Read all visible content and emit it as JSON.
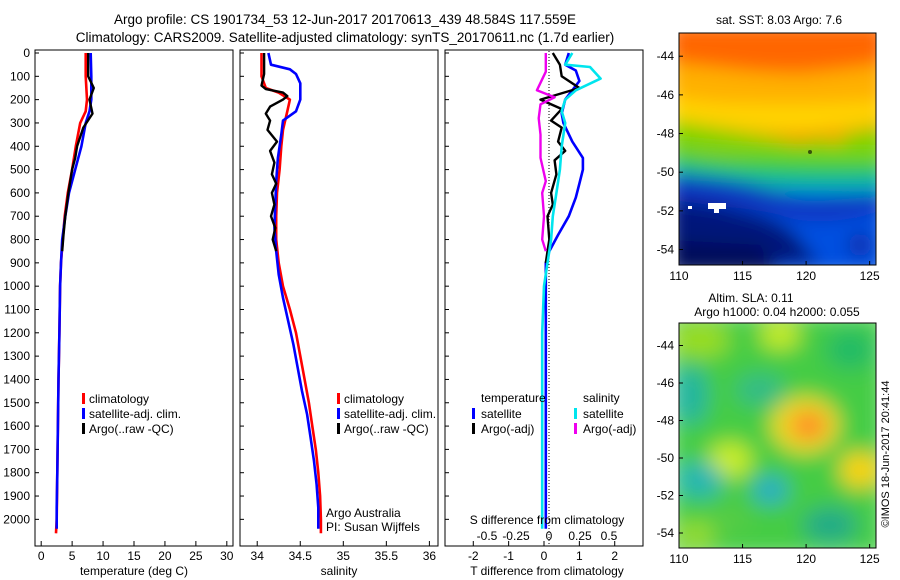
{
  "header": {
    "line1": "Argo profile: CS 1901734_53 12-Jun-2017 20170613_439 48.584S 117.559E",
    "line2": "Climatology: CARS2009. Satellite-adjusted climatology: synTS_20170611.nc (1.7d earlier)"
  },
  "colors": {
    "climatology": "#ff0000",
    "satellite_clim": "#0000ff",
    "argo": "#000000",
    "temp_satellite": "#0000ff",
    "temp_argo": "#000000",
    "sal_satellite": "#00e5ee",
    "sal_argo": "#ee00ee"
  },
  "chart_data": [
    {
      "type": "line",
      "xlabel": "temperature (deg C)",
      "xlim": [
        -1,
        31
      ],
      "xticks": [
        0,
        5,
        10,
        15,
        20,
        25,
        30
      ],
      "ylim": [
        0,
        2080
      ],
      "yticks": [
        0,
        100,
        200,
        300,
        400,
        500,
        600,
        700,
        800,
        900,
        1000,
        1100,
        1200,
        1300,
        1400,
        1500,
        1600,
        1700,
        1800,
        1900,
        2000
      ],
      "legend": [
        "climatology",
        "satellite-adj. clim.",
        "Argo(..raw -QC)"
      ],
      "series": [
        {
          "name": "climatology",
          "color": "climatology",
          "points": [
            [
              7.2,
              0
            ],
            [
              7.2,
              100
            ],
            [
              7.4,
              200
            ],
            [
              7.2,
              250
            ],
            [
              6.3,
              300
            ],
            [
              5.6,
              400
            ],
            [
              5.0,
              500
            ],
            [
              4.3,
              600
            ],
            [
              3.8,
              700
            ],
            [
              3.5,
              800
            ],
            [
              3.2,
              900
            ],
            [
              3.05,
              1000
            ],
            [
              2.95,
              1200
            ],
            [
              2.8,
              1400
            ],
            [
              2.7,
              1600
            ],
            [
              2.6,
              1800
            ],
            [
              2.5,
              2000
            ],
            [
              2.4,
              2060
            ]
          ]
        },
        {
          "name": "satellite-adj. clim.",
          "color": "satellite_clim",
          "points": [
            [
              8.0,
              0
            ],
            [
              8.1,
              100
            ],
            [
              8.1,
              200
            ],
            [
              7.8,
              250
            ],
            [
              7.2,
              300
            ],
            [
              6.5,
              400
            ],
            [
              5.5,
              500
            ],
            [
              4.5,
              600
            ],
            [
              3.9,
              700
            ],
            [
              3.4,
              800
            ],
            [
              3.2,
              900
            ],
            [
              3.05,
              1000
            ],
            [
              2.95,
              1200
            ],
            [
              2.8,
              1400
            ],
            [
              2.7,
              1600
            ],
            [
              2.6,
              1800
            ],
            [
              2.5,
              1950
            ],
            [
              2.5,
              2040
            ]
          ]
        },
        {
          "name": "Argo(..raw -QC)",
          "color": "argo",
          "points": [
            [
              7.6,
              0
            ],
            [
              7.6,
              100
            ],
            [
              8.5,
              150
            ],
            [
              7.8,
              200
            ],
            [
              8.3,
              260
            ],
            [
              6.8,
              320
            ],
            [
              5.8,
              400
            ],
            [
              5.5,
              450
            ],
            [
              5.0,
              500
            ],
            [
              4.4,
              600
            ],
            [
              3.9,
              700
            ],
            [
              3.6,
              780
            ],
            [
              3.4,
              850
            ]
          ]
        }
      ]
    },
    {
      "type": "line",
      "xlabel": "salinity",
      "xlim": [
        33.8,
        36.1
      ],
      "xticks": [
        34,
        34.5,
        35,
        35.5,
        36
      ],
      "ylim": [
        0,
        2080
      ],
      "legend": [
        "climatology",
        "satellite-adj. clim.",
        "Argo(..raw -QC)"
      ],
      "annotation": [
        "Argo Australia",
        "PI: Susan Wijffels"
      ],
      "series": [
        {
          "name": "climatology",
          "color": "climatology",
          "points": [
            [
              34.05,
              0
            ],
            [
              34.05,
              100
            ],
            [
              34.1,
              150
            ],
            [
              34.25,
              170
            ],
            [
              34.38,
              200
            ],
            [
              34.35,
              250
            ],
            [
              34.3,
              330
            ],
            [
              34.28,
              400
            ],
            [
              34.26,
              500
            ],
            [
              34.23,
              600
            ],
            [
              34.22,
              700
            ],
            [
              34.22,
              800
            ],
            [
              34.25,
              900
            ],
            [
              34.3,
              1000
            ],
            [
              34.38,
              1100
            ],
            [
              34.45,
              1200
            ],
            [
              34.5,
              1300
            ],
            [
              34.55,
              1400
            ],
            [
              34.6,
              1500
            ],
            [
              34.64,
              1600
            ],
            [
              34.68,
              1700
            ],
            [
              34.71,
              1800
            ],
            [
              34.73,
              1900
            ],
            [
              34.74,
              2000
            ],
            [
              34.74,
              2060
            ]
          ]
        },
        {
          "name": "satellite-adj. clim.",
          "color": "satellite_clim",
          "points": [
            [
              34.13,
              0
            ],
            [
              34.16,
              50
            ],
            [
              34.38,
              70
            ],
            [
              34.45,
              90
            ],
            [
              34.5,
              130
            ],
            [
              34.5,
              200
            ],
            [
              34.45,
              250
            ],
            [
              34.3,
              290
            ],
            [
              34.28,
              350
            ],
            [
              34.24,
              450
            ],
            [
              34.22,
              550
            ],
            [
              34.21,
              650
            ],
            [
              34.2,
              750
            ],
            [
              34.22,
              850
            ],
            [
              34.25,
              950
            ],
            [
              34.3,
              1050
            ],
            [
              34.36,
              1150
            ],
            [
              34.42,
              1250
            ],
            [
              34.47,
              1350
            ],
            [
              34.52,
              1450
            ],
            [
              34.58,
              1550
            ],
            [
              34.62,
              1650
            ],
            [
              34.66,
              1750
            ],
            [
              34.69,
              1850
            ],
            [
              34.71,
              1950
            ],
            [
              34.71,
              2040
            ]
          ]
        },
        {
          "name": "Argo(..raw -QC)",
          "color": "argo",
          "points": [
            [
              34.08,
              0
            ],
            [
              34.08,
              90
            ],
            [
              34.05,
              140
            ],
            [
              34.1,
              155
            ],
            [
              34.3,
              170
            ],
            [
              34.35,
              185
            ],
            [
              34.3,
              200
            ],
            [
              34.15,
              230
            ],
            [
              34.1,
              260
            ],
            [
              34.15,
              290
            ],
            [
              34.12,
              330
            ],
            [
              34.23,
              380
            ],
            [
              34.15,
              420
            ],
            [
              34.2,
              470
            ],
            [
              34.17,
              520
            ],
            [
              34.22,
              560
            ],
            [
              34.17,
              600
            ],
            [
              34.2,
              650
            ],
            [
              34.16,
              700
            ],
            [
              34.21,
              750
            ],
            [
              34.18,
              800
            ],
            [
              34.22,
              850
            ]
          ]
        }
      ]
    },
    {
      "type": "line",
      "xlabel": "T difference from climatology",
      "xlim": [
        -2.8,
        2.8
      ],
      "xticks": [
        -2,
        -1,
        0,
        1,
        2
      ],
      "top_xlabel": "S difference from climatology",
      "top_xticks": [
        "-0.5",
        "-0.25",
        "0",
        "0.25",
        "0.5"
      ],
      "ylim": [
        0,
        2080
      ],
      "legend_headers": [
        "temperature",
        "salinity"
      ],
      "legend": [
        "satellite",
        "Argo(-adj)",
        "satellite",
        "Argo(-adj)"
      ],
      "series": [
        {
          "name": "satellite",
          "group": "temperature",
          "color": "temp_satellite",
          "points": [
            [
              0.7,
              0
            ],
            [
              0.6,
              50
            ],
            [
              0.9,
              75
            ],
            [
              1.0,
              120
            ],
            [
              0.8,
              160
            ],
            [
              0.6,
              200
            ],
            [
              0.5,
              260
            ],
            [
              0.55,
              300
            ],
            [
              0.8,
              380
            ],
            [
              1.1,
              450
            ],
            [
              1.1,
              500
            ],
            [
              1.0,
              560
            ],
            [
              0.9,
              620
            ],
            [
              0.7,
              700
            ],
            [
              0.4,
              780
            ],
            [
              0.15,
              850
            ],
            [
              0.05,
              900
            ],
            [
              0.05,
              1000
            ],
            [
              0.05,
              1500
            ],
            [
              0.05,
              2040
            ]
          ]
        },
        {
          "name": "Argo(-adj)",
          "group": "temperature",
          "color": "temp_argo",
          "points": [
            [
              0.25,
              0
            ],
            [
              0.45,
              50
            ],
            [
              0.5,
              100
            ],
            [
              1.0,
              150
            ],
            [
              -0.1,
              200
            ],
            [
              0.5,
              240
            ],
            [
              0.2,
              290
            ],
            [
              0.5,
              320
            ],
            [
              0.4,
              380
            ],
            [
              0.6,
              420
            ],
            [
              0.3,
              460
            ],
            [
              0.35,
              520
            ],
            [
              0.2,
              600
            ],
            [
              0.25,
              650
            ],
            [
              0.1,
              700
            ],
            [
              0.15,
              800
            ],
            [
              0.1,
              850
            ],
            [
              0.05,
              900
            ]
          ]
        },
        {
          "name": "satellite",
          "group": "salinity",
          "color": "sal_satellite",
          "points": [
            [
              0.8,
              0
            ],
            [
              0.6,
              50
            ],
            [
              1.3,
              60
            ],
            [
              1.6,
              110
            ],
            [
              0.9,
              160
            ],
            [
              0.6,
              200
            ],
            [
              0.5,
              250
            ],
            [
              0.6,
              300
            ],
            [
              0.5,
              400
            ],
            [
              0.45,
              500
            ],
            [
              0.35,
              600
            ],
            [
              0.25,
              700
            ],
            [
              0.2,
              800
            ],
            [
              0.1,
              900
            ],
            [
              0.0,
              1000
            ],
            [
              -0.05,
              1200
            ],
            [
              -0.05,
              1400
            ],
            [
              -0.05,
              1800
            ],
            [
              -0.05,
              2040
            ]
          ]
        },
        {
          "name": "Argo(-adj)",
          "group": "salinity",
          "color": "sal_argo",
          "points": [
            [
              0.05,
              0
            ],
            [
              0.05,
              80
            ],
            [
              -0.2,
              160
            ],
            [
              0.3,
              190
            ],
            [
              -0.1,
              220
            ],
            [
              -0.15,
              280
            ],
            [
              -0.1,
              350
            ],
            [
              -0.1,
              450
            ],
            [
              0.05,
              550
            ],
            [
              -0.05,
              600
            ],
            [
              0.0,
              700
            ],
            [
              -0.05,
              800
            ],
            [
              0.05,
              850
            ]
          ]
        }
      ]
    },
    {
      "type": "heatmap",
      "title": "sat. SST: 8.03 Argo: 7.6",
      "xlim": [
        110,
        125.5
      ],
      "xticks": [
        110,
        115,
        120,
        125
      ],
      "ylim": [
        -54.8,
        -42.8
      ],
      "yticks": [
        -44,
        -46,
        -48,
        -50,
        -52,
        -54
      ]
    },
    {
      "type": "heatmap",
      "title": "Altim. SLA: 0.11",
      "subtitle": "Argo h1000: 0.04 h2000: 0.055",
      "xlim": [
        110,
        125.5
      ],
      "xticks": [
        110,
        115,
        120,
        125
      ],
      "ylim": [
        -54.8,
        -42.8
      ],
      "yticks": [
        -44,
        -46,
        -48,
        -50,
        -52,
        -54
      ],
      "side_label": "©IMOS 18-Jun-2017 20:41:44"
    }
  ]
}
